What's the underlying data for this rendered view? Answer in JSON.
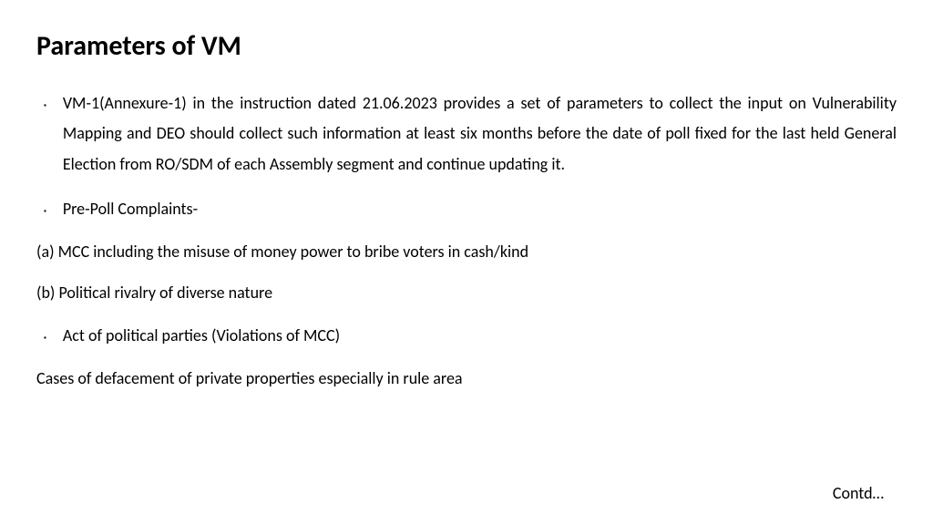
{
  "title": "Parameters of VM",
  "bullets": [
    "VM-1(Annexure-1) in the instruction dated 21.06.2023 provides a set of parameters to collect the input on Vulnerability Mapping and DEO should collect such information at least six months before the date of poll fixed for the last held General Election from RO/SDM of each Assembly segment and continue updating it.",
    "Pre-Poll Complaints-",
    "Act of political parties (Violations of MCC)"
  ],
  "subitems": [
    "(a) MCC including the misuse of money power to bribe voters in cash/kind",
    "(b) Political rivalry of diverse nature"
  ],
  "plaintext": "Cases of defacement of private properties especially in rule area",
  "contd": "Contd…",
  "colors": {
    "background": "#ffffff",
    "text": "#000000"
  },
  "typography": {
    "title_fontsize": 30,
    "body_fontsize": 18,
    "title_weight": "bold",
    "font_family": "Calibri"
  }
}
